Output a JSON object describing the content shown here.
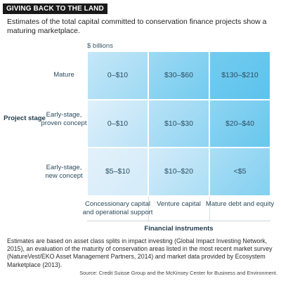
{
  "header": {
    "title": "GIVING BACK TO THE LAND",
    "subtitle": "Estimates of the total capital committed to conservation finance projects show a maturing marketplace."
  },
  "chart_data": {
    "type": "heatmap",
    "title": "GIVING BACK TO THE LAND",
    "subtitle": "Estimates of the total capital committed to conservation finance projects show a maturing marketplace.",
    "unit_label": "$ billions",
    "xlabel": "Financial instruments",
    "ylabel": "Project stage",
    "columns": [
      "Concessionary capital and operational support",
      "Venture capital",
      "Mature debt and equity"
    ],
    "rows": [
      "Mature",
      "Early-stage, proven concept",
      "Early-stage, new concept"
    ],
    "values": [
      [
        "0–$10",
        "$30–$60",
        "$130–$210"
      ],
      [
        "0–$10",
        "$10–$30",
        "$20–$40"
      ],
      [
        "$5–$10",
        "$10–$20",
        "<$5"
      ]
    ],
    "colors": {
      "light": "#e3f1fb",
      "dark": "#5cc3ec"
    }
  },
  "footnote": "Estimates are based on asset class splits in impact investing (Global Impact Investing Network, 2015), an evaluation of the maturity of conservation areas listed in the most recent market survey (NatureVest/EKO Asset Management Partners, 2014) and market data provided by Ecosystem Marketplace (2013).",
  "source": "Source: Credit Suisse Group and the McKinsey Center for Business and Environment."
}
